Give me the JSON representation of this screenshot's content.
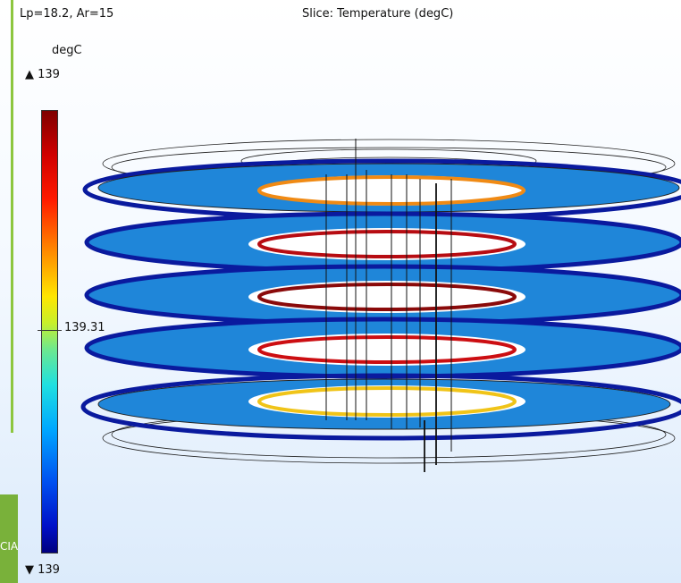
{
  "plot": {
    "parameters": "Lp=18.2, Ar=15",
    "title": "Slice: Temperature (degC)"
  },
  "colorbar": {
    "unit": "degC",
    "max_label": "▲ 139",
    "min_label": "▼ 139",
    "mid_label": "139.31",
    "colors": [
      "#7f0000",
      "#d00000",
      "#ff8c00",
      "#ffe600",
      "#20e0e0",
      "#00a8ff",
      "#0050f0",
      "#00007f"
    ]
  },
  "background_fragment": "CIA",
  "colors": {
    "disk_fill": "#1f86d9",
    "disk_rim": "#0a1a9e",
    "accent_green": "#8dc63f"
  }
}
